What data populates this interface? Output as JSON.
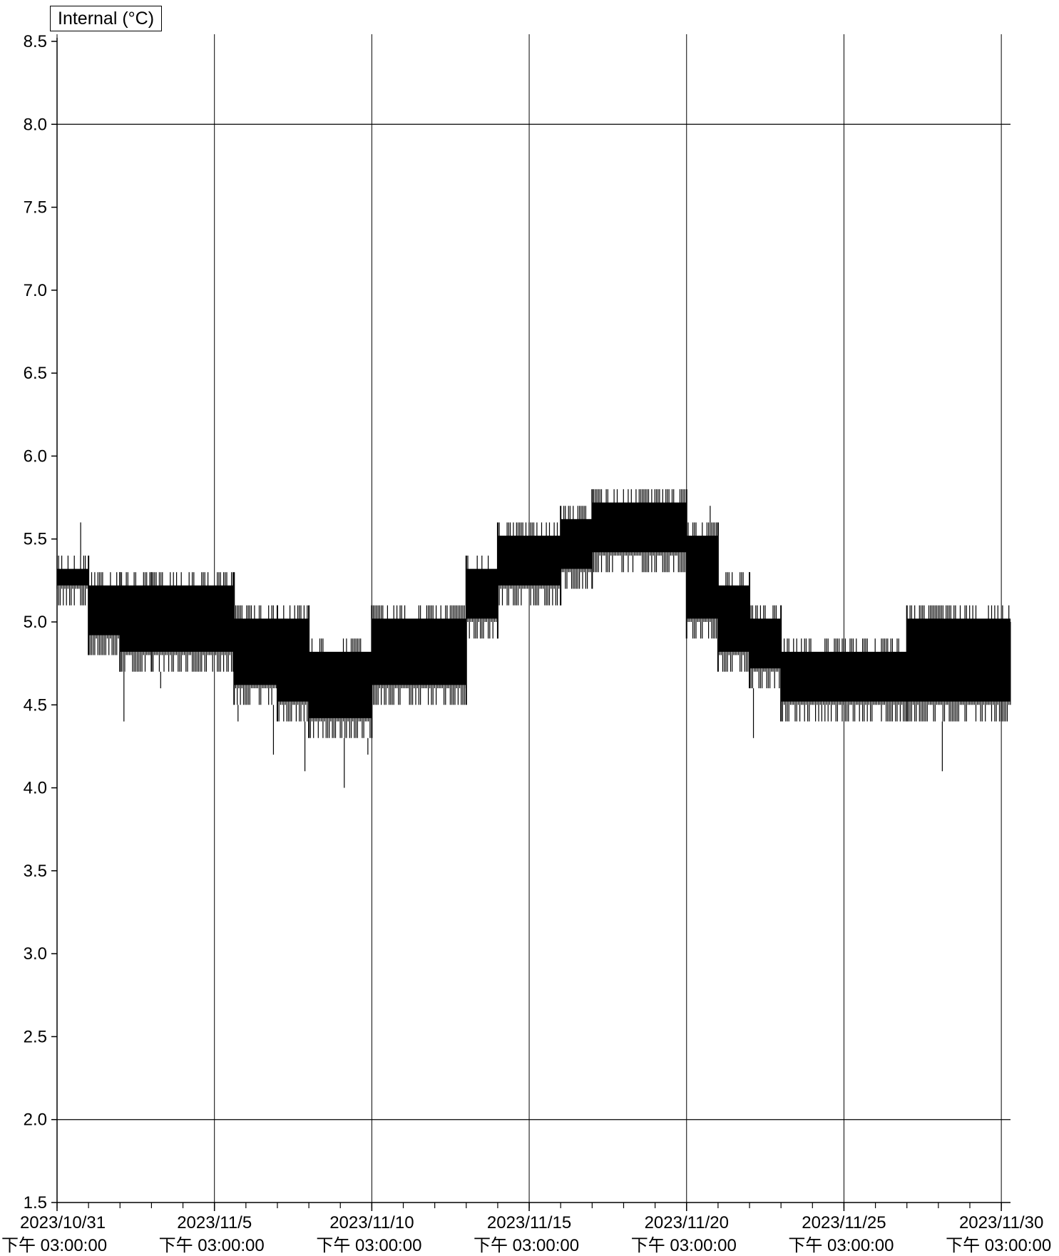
{
  "chart_data": {
    "type": "line",
    "legend": "Internal (°C)",
    "legend_position": "top-left",
    "grid": true,
    "ylim": [
      1.5,
      8.5
    ],
    "yticks": [
      "1.5",
      "2.0",
      "2.5",
      "3.0",
      "3.5",
      "4.0",
      "4.5",
      "5.0",
      "5.5",
      "6.0",
      "6.5",
      "7.0",
      "7.5",
      "8.0",
      "8.5"
    ],
    "reference_lines": [
      8.0,
      2.0
    ],
    "xlim": [
      "2023/10/31 15:00",
      "2023/11/30 22:00"
    ],
    "xticks": [
      {
        "date": "2023/10/31",
        "time": "下午 03:00:00"
      },
      {
        "date": "2023/11/5",
        "time": "下午 03:00:00"
      },
      {
        "date": "2023/11/10",
        "time": "下午 03:00:00"
      },
      {
        "date": "2023/11/15",
        "time": "下午 03:00:00"
      },
      {
        "date": "2023/11/20",
        "time": "下午 03:00:00"
      },
      {
        "date": "2023/11/25",
        "time": "下午 03:00:00"
      },
      {
        "date": "2023/11/30",
        "time": "下午 03:00:00"
      }
    ],
    "series": [
      {
        "name": "Internal (°C)",
        "color": "#000000",
        "bands": [
          {
            "x_start": "2023/10/31 15:00",
            "x_end": "2023/11/1 15:00",
            "low": 5.1,
            "high": 5.4
          },
          {
            "x_start": "2023/11/1 15:00",
            "x_end": "2023/11/2 15:00",
            "low": 4.8,
            "high": 5.3
          },
          {
            "x_start": "2023/11/2 15:00",
            "x_end": "2023/11/3 15:00",
            "low": 4.7,
            "high": 5.3
          },
          {
            "x_start": "2023/11/3 15:00",
            "x_end": "2023/11/6 6:00",
            "low": 4.7,
            "high": 5.3
          },
          {
            "x_start": "2023/11/6 6:00",
            "x_end": "2023/11/7 15:00",
            "low": 4.5,
            "high": 5.1
          },
          {
            "x_start": "2023/11/7 15:00",
            "x_end": "2023/11/8 15:00",
            "low": 4.4,
            "high": 5.1
          },
          {
            "x_start": "2023/11/8 15:00",
            "x_end": "2023/11/10 15:00",
            "low": 4.3,
            "high": 4.9
          },
          {
            "x_start": "2023/11/10 15:00",
            "x_end": "2023/11/13 15:00",
            "low": 4.5,
            "high": 5.1
          },
          {
            "x_start": "2023/11/13 15:00",
            "x_end": "2023/11/14 15:00",
            "low": 4.9,
            "high": 5.4
          },
          {
            "x_start": "2023/11/14 15:00",
            "x_end": "2023/11/16 15:00",
            "low": 5.1,
            "high": 5.6
          },
          {
            "x_start": "2023/11/16 15:00",
            "x_end": "2023/11/17 15:00",
            "low": 5.2,
            "high": 5.7
          },
          {
            "x_start": "2023/11/17 15:00",
            "x_end": "2023/11/20 15:00",
            "low": 5.3,
            "high": 5.8
          },
          {
            "x_start": "2023/11/20 15:00",
            "x_end": "2023/11/21 15:00",
            "low": 4.9,
            "high": 5.6
          },
          {
            "x_start": "2023/11/21 15:00",
            "x_end": "2023/11/22 15:00",
            "low": 4.7,
            "high": 5.3
          },
          {
            "x_start": "2023/11/22 15:00",
            "x_end": "2023/11/23 15:00",
            "low": 4.6,
            "high": 5.1
          },
          {
            "x_start": "2023/11/23 15:00",
            "x_end": "2023/11/27 15:00",
            "low": 4.4,
            "high": 4.9
          },
          {
            "x_start": "2023/11/27 15:00",
            "x_end": "2023/11/30 22:00",
            "low": 4.4,
            "high": 5.1
          }
        ],
        "spikes": [
          {
            "x": "2023/11/1 9:00",
            "y": 5.6
          },
          {
            "x": "2023/11/2 18:00",
            "y": 4.4
          },
          {
            "x": "2023/11/3 22:00",
            "y": 4.6
          },
          {
            "x": "2023/11/6 9:00",
            "y": 4.4
          },
          {
            "x": "2023/11/7 12:00",
            "y": 4.2
          },
          {
            "x": "2023/11/8 12:00",
            "y": 4.1
          },
          {
            "x": "2023/11/9 18:00",
            "y": 4.0
          },
          {
            "x": "2023/11/10 12:00",
            "y": 4.2
          },
          {
            "x": "2023/11/21 9:00",
            "y": 5.7
          },
          {
            "x": "2023/11/22 18:00",
            "y": 4.3
          },
          {
            "x": "2023/11/28 18:00",
            "y": 4.1
          }
        ]
      }
    ]
  }
}
